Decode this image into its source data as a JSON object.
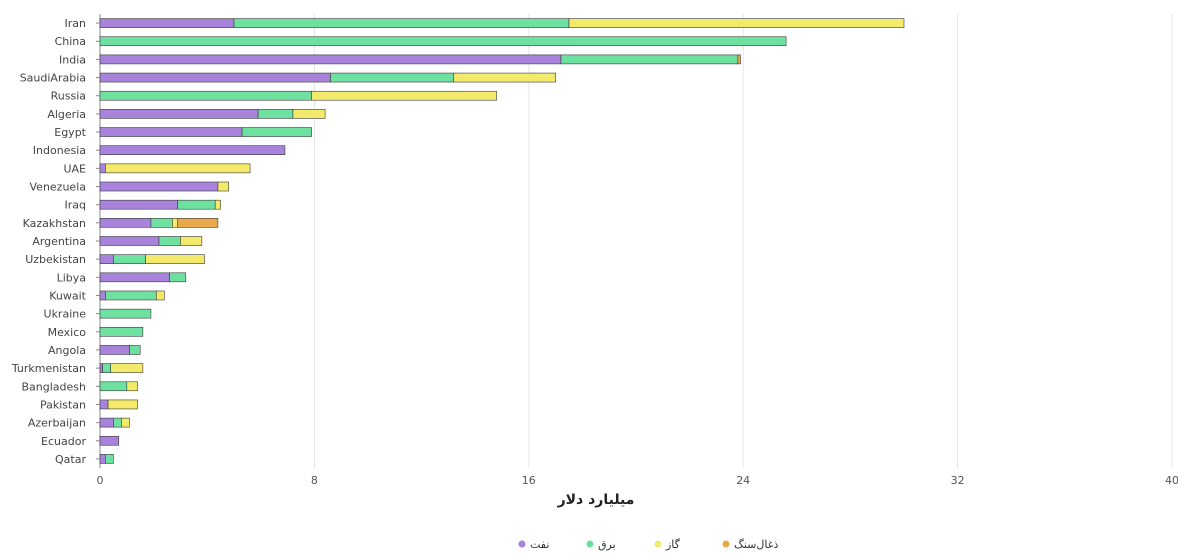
{
  "chart_data": {
    "type": "bar",
    "orientation": "horizontal",
    "stacked": true,
    "xlabel": "میلیارد دلار",
    "xlim": [
      0,
      40
    ],
    "xticks": [
      0,
      8,
      16,
      24,
      32,
      40
    ],
    "grid": true,
    "legend_position": "bottom",
    "categories": [
      "Iran",
      "China",
      "India",
      "SaudiArabia",
      "Russia",
      "Algeria",
      "Egypt",
      "Indonesia",
      "UAE",
      "Venezuela",
      "Iraq",
      "Kazakhstan",
      "Argentina",
      "Uzbekistan",
      "Libya",
      "Kuwait",
      "Ukraine",
      "Mexico",
      "Angola",
      "Turkmenistan",
      "Bangladesh",
      "Pakistan",
      "Azerbaijan",
      "Ecuador",
      "Qatar"
    ],
    "series": [
      {
        "name": "نفت",
        "color": "#a883db",
        "values": [
          5.0,
          0,
          17.2,
          8.6,
          0,
          5.9,
          5.3,
          6.9,
          0.2,
          4.4,
          2.9,
          1.9,
          2.2,
          0.5,
          2.6,
          0.2,
          0,
          0,
          1.1,
          0.1,
          0,
          0.3,
          0.5,
          0.7,
          0.2
        ]
      },
      {
        "name": "برق",
        "color": "#6ee0a0",
        "values": [
          12.5,
          25.6,
          6.6,
          4.6,
          7.9,
          1.3,
          2.6,
          0,
          0,
          0,
          1.4,
          0.8,
          0.8,
          1.2,
          0.6,
          1.9,
          1.9,
          1.6,
          0.4,
          0.3,
          1.0,
          0,
          0.3,
          0,
          0.3
        ]
      },
      {
        "name": "گاز",
        "color": "#f3ea6b",
        "values": [
          12.5,
          0,
          0,
          3.8,
          6.9,
          1.2,
          0,
          0,
          5.4,
          0.4,
          0.2,
          0.2,
          0.8,
          2.2,
          0,
          0.3,
          0,
          0,
          0,
          1.2,
          0.4,
          1.1,
          0.3,
          0,
          0
        ]
      },
      {
        "name": "ذغال‌سنگ",
        "color": "#e8a94a",
        "values": [
          0,
          0,
          0.1,
          0,
          0,
          0,
          0,
          0,
          0,
          0,
          0,
          1.5,
          0,
          0,
          0,
          0,
          0,
          0,
          0,
          0,
          0,
          0,
          0,
          0,
          0
        ]
      }
    ]
  }
}
